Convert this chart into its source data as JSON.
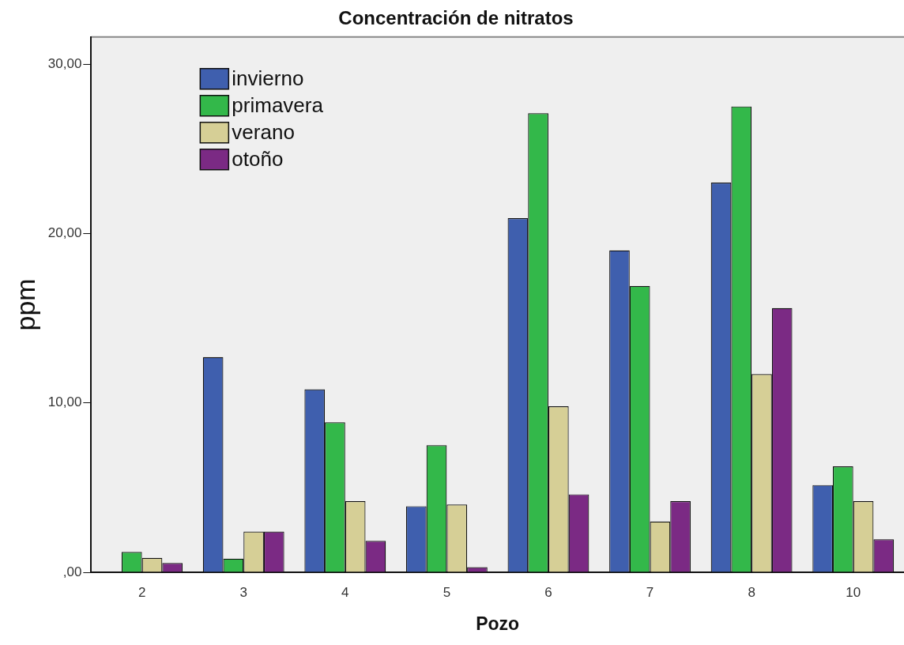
{
  "chart_data": {
    "type": "bar",
    "title": "Concentración de nitratos",
    "xlabel": "Pozo",
    "ylabel": "ppm",
    "categories": [
      "2",
      "3",
      "4",
      "5",
      "6",
      "7",
      "8",
      "10"
    ],
    "series": [
      {
        "name": "invierno",
        "color": "#3f5fae",
        "values": [
          null,
          12.7,
          10.8,
          3.9,
          20.9,
          19.0,
          23.0,
          5.15
        ]
      },
      {
        "name": "primavera",
        "color": "#33b84a",
        "values": [
          1.2,
          0.8,
          8.85,
          7.5,
          27.1,
          16.9,
          27.5,
          6.25
        ]
      },
      {
        "name": "verano",
        "color": "#d6cf96",
        "values": [
          0.85,
          2.4,
          4.2,
          4.0,
          9.8,
          3.0,
          11.7,
          4.2
        ]
      },
      {
        "name": "otoño",
        "color": "#7b2a84",
        "values": [
          0.55,
          2.4,
          1.85,
          0.3,
          4.6,
          4.2,
          15.6,
          1.95
        ]
      }
    ],
    "ylim": [
      0,
      31.6
    ],
    "yticks": [
      {
        "value": 0,
        "label": ",00"
      },
      {
        "value": 10,
        "label": "10,00"
      },
      {
        "value": 20,
        "label": "20,00"
      },
      {
        "value": 30,
        "label": "30,00"
      }
    ],
    "grid": false,
    "legend": "top left"
  }
}
